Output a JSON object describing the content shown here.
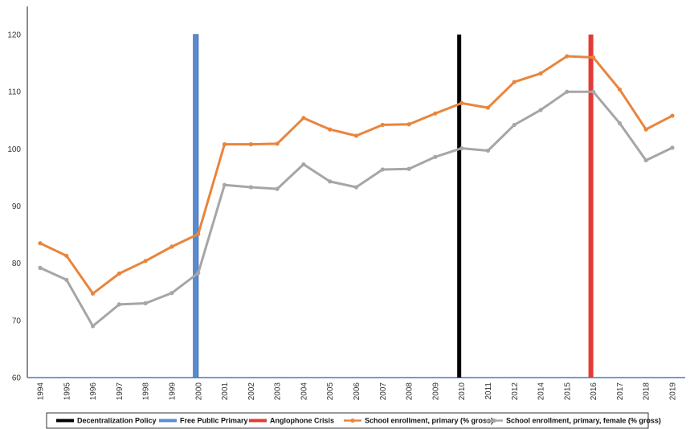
{
  "chart_data": {
    "type": "line",
    "x": [
      "1994",
      "1995",
      "1996",
      "1997",
      "1998",
      "1999",
      "2000",
      "2001",
      "2002",
      "2003",
      "2004",
      "2005",
      "2006",
      "2007",
      "2008",
      "2009",
      "2010",
      "2011",
      "2012",
      "2014",
      "2015",
      "2016",
      "2017",
      "2018",
      "2019"
    ],
    "series": [
      {
        "name": "School enrollment, primary (% gross)",
        "color": "#E8853D",
        "values": [
          83.5,
          81.3,
          74.7,
          78.2,
          80.4,
          82.9,
          85.1,
          100.8,
          100.8,
          100.9,
          105.4,
          103.4,
          102.3,
          104.2,
          104.3,
          106.2,
          108.0,
          107.2,
          111.7,
          113.2,
          116.2,
          116.0,
          110.4,
          103.4,
          105.8
        ]
      },
      {
        "name": "School enrollment, primary, female (% gross)",
        "color": "#A6A6A6",
        "values": [
          79.2,
          77.1,
          69.0,
          72.8,
          73.0,
          74.8,
          78.3,
          93.7,
          93.3,
          93.0,
          97.3,
          94.3,
          93.3,
          96.4,
          96.5,
          98.6,
          100.1,
          99.7,
          104.2,
          106.8,
          110.0,
          110.0,
          104.5,
          98.0,
          100.2
        ]
      }
    ],
    "events": [
      {
        "name": "Free Public Primary",
        "x": "2000",
        "color": "#5B8BD0"
      },
      {
        "name": "Decentralization Policy",
        "x": "2010",
        "color": "#000000"
      },
      {
        "name": "Anglophone Crisis",
        "x": "2016",
        "color": "#E53935"
      }
    ],
    "ylim": [
      60,
      120
    ],
    "yticks": [
      60,
      70,
      80,
      90,
      100,
      110,
      120
    ],
    "legend": {
      "placement": "bottom",
      "order": [
        "Decentralization Policy",
        "Free Public Primary",
        "Anglophone Crisis",
        "School enrollment, primary (% gross)",
        "School enrollment, primary, female (% gross)"
      ]
    },
    "grid": false
  }
}
